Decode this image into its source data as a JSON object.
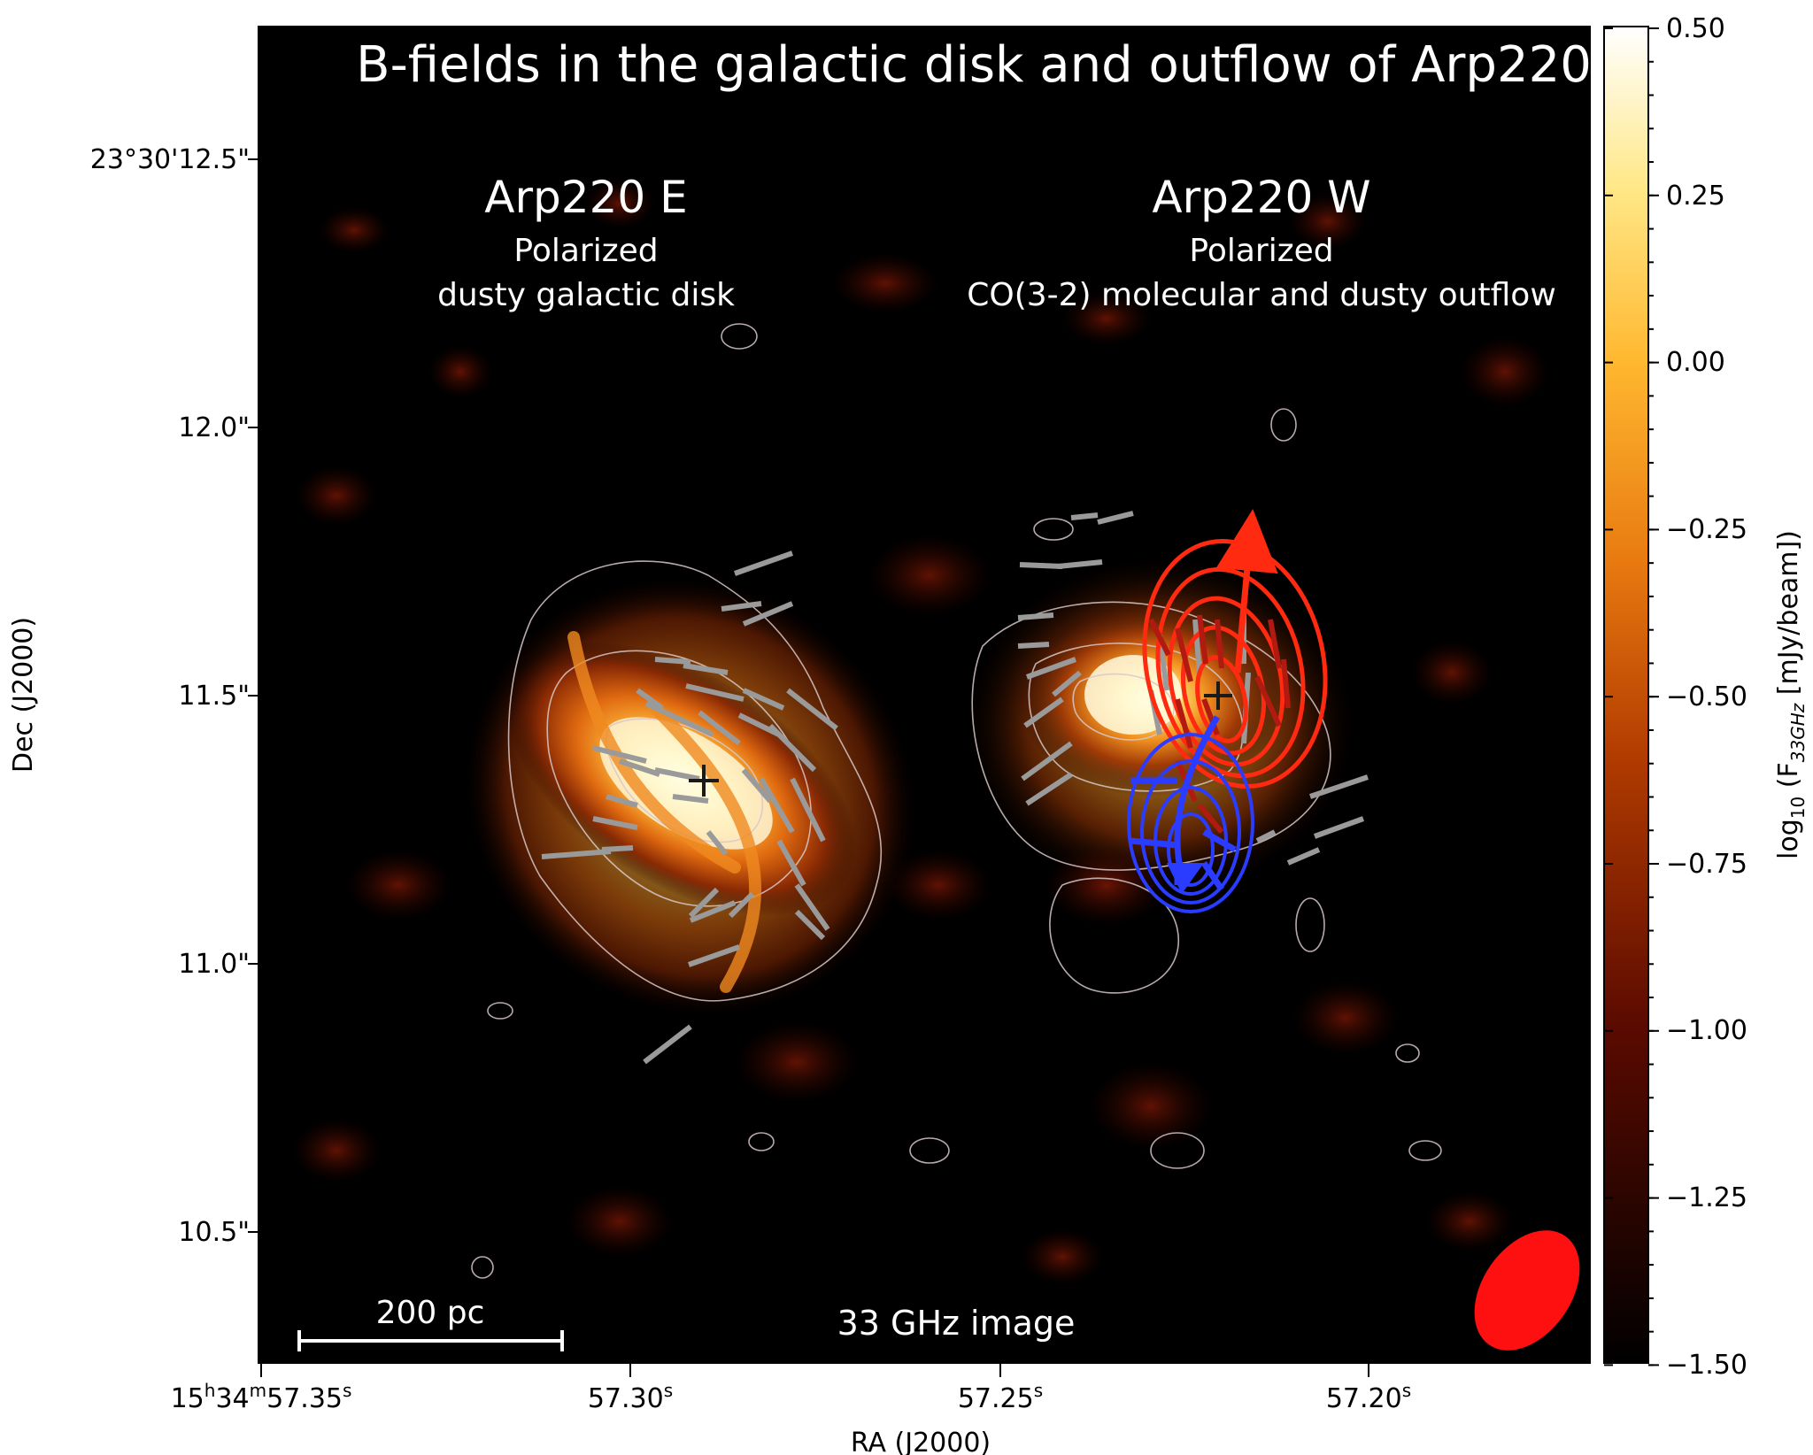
{
  "title": "B-fields in the galactic disk and outflow of Arp220",
  "panel_east": {
    "name": "Arp220 E",
    "line1": "Polarized",
    "line2": "dusty galactic disk"
  },
  "panel_west": {
    "name": "Arp220 W",
    "line1": "Polarized",
    "line2": "CO(3-2) molecular and dusty outflow"
  },
  "image_label": "33 GHz image",
  "scale_bar": {
    "label": "200 pc"
  },
  "y_axis": {
    "label": "Dec (J2000)",
    "ticks": [
      "23°30'12.5\"",
      "12.0\"",
      "11.5\"",
      "11.0\"",
      "10.5\""
    ]
  },
  "x_axis": {
    "label": "RA (J2000)",
    "ticks": [
      {
        "h": "15",
        "m": "34",
        "s": "57.35"
      },
      {
        "s": "57.30"
      },
      {
        "s": "57.25"
      },
      {
        "s": "57.20"
      }
    ]
  },
  "colorbar": {
    "label_prefix": "log",
    "label_sub": "10",
    "label_mid": " (F",
    "label_flux_sub": "33GHz",
    "label_suffix": " [mJy/beam])",
    "ticks": [
      "0.50",
      "0.25",
      "0.00",
      "−0.25",
      "−0.50",
      "−0.75",
      "−1.00",
      "−1.25",
      "−1.50"
    ],
    "range": [
      -1.5,
      0.5
    ],
    "colormap": "afmhot"
  },
  "colors": {
    "background": "#000000",
    "contour": "#d8c8c8",
    "bfield_vector": "#9a9a9a",
    "redshifted_outflow": "#ff2a10",
    "blueshifted_outflow": "#2a3cff",
    "disk_streamline": "#f08a20",
    "beam": "#ff1010"
  }
}
